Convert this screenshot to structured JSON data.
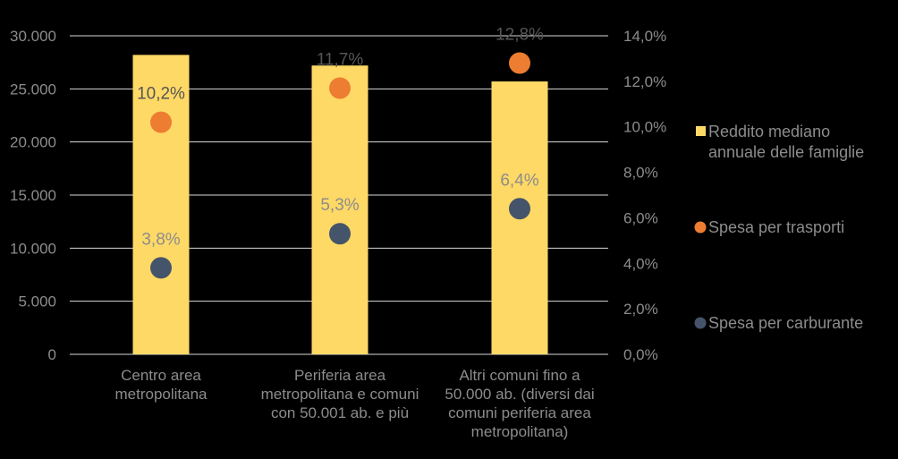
{
  "chart_data": {
    "type": "bar",
    "categories": [
      [
        "Centro area",
        "metropolitana"
      ],
      [
        "Periferia area",
        "metropolitana e comuni",
        "con 50.001 ab. e più"
      ],
      [
        "Altri comuni fino a",
        "50.000 ab. (diversi dai",
        "comuni periferia area",
        "metropolitana)"
      ]
    ],
    "y_left": {
      "ylim": [
        0,
        30000
      ],
      "ticks": [
        0,
        5000,
        10000,
        15000,
        20000,
        25000,
        30000
      ],
      "tick_labels": [
        "0",
        "5.000",
        "10.000",
        "15.000",
        "20.000",
        "25.000",
        "30.000"
      ]
    },
    "y_right": {
      "ylim": [
        0,
        14
      ],
      "ticks": [
        0,
        2,
        4,
        6,
        8,
        10,
        12,
        14
      ],
      "tick_labels": [
        "0,0%",
        "2,0%",
        "4,0%",
        "6,0%",
        "8,0%",
        "10,0%",
        "12,0%",
        "14,0%"
      ]
    },
    "grid": true,
    "legend_position": "right",
    "series": [
      {
        "name": [
          "Reddito mediano",
          "annuale delle famiglie"
        ],
        "kind": "bar",
        "axis": "left",
        "color": "#FFD966",
        "values": [
          28200,
          27200,
          25700
        ]
      },
      {
        "name": [
          "Spesa per trasporti"
        ],
        "kind": "scatter",
        "axis": "right",
        "color": "#ED7D31",
        "values": [
          10.2,
          11.7,
          12.8
        ],
        "labels": [
          "10,2%",
          "11,7%",
          "12,8%"
        ],
        "label_color": "#555555"
      },
      {
        "name": [
          "Spesa per carburante"
        ],
        "kind": "scatter",
        "axis": "right",
        "color": "#44546A",
        "values": [
          3.8,
          5.3,
          6.4
        ],
        "labels": [
          "3,8%",
          "5,3%",
          "6,4%"
        ],
        "label_color": "#8c8c8c"
      }
    ]
  }
}
